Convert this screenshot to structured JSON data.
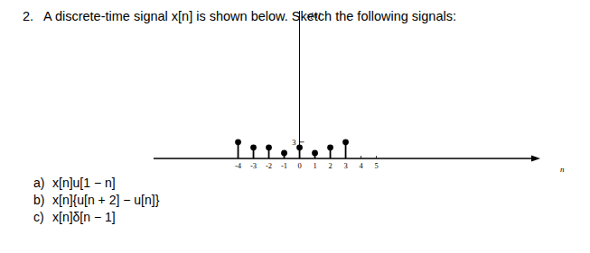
{
  "problem": {
    "number": "2.",
    "text": "A discrete-time signal x[n] is shown below. Sketch the following signals:"
  },
  "parts": [
    {
      "label": "a)",
      "text": "x[n]u[1 − n]"
    },
    {
      "label": "b)",
      "text": "x[n]{u[n + 2] − u[n]}"
    },
    {
      "label": "c)",
      "text": "x[n]δ[n − 1]"
    }
  ],
  "chart_data": {
    "type": "stem",
    "y_label": "x[n]",
    "x_label": "n",
    "x": [
      -4,
      -3,
      -2,
      -1,
      0,
      1,
      2,
      3
    ],
    "values": [
      3,
      2,
      2,
      1,
      2,
      1,
      2,
      3
    ],
    "color": "#000000",
    "xlim": [
      -9.5,
      15.2
    ],
    "ylim": [
      0,
      27
    ],
    "xticks": [
      -4,
      -3,
      -2,
      -1,
      0,
      1,
      2,
      3,
      4,
      5
    ],
    "yticks": [
      3
    ],
    "marker": "circle"
  }
}
